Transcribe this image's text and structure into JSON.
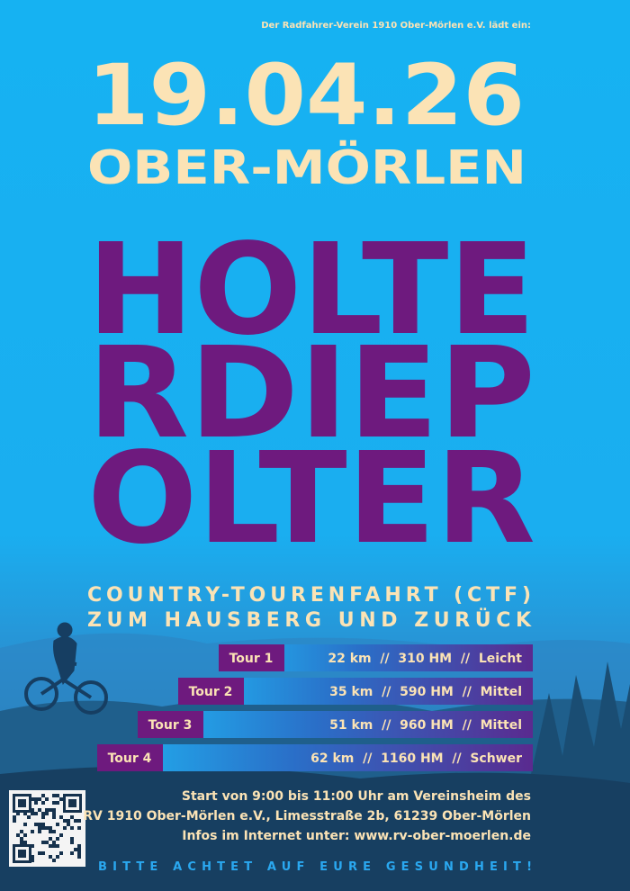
{
  "header": {
    "invite": "Der Radfahrer-Verein 1910 Ober-Mörlen e.V. lädt ein:",
    "date": "19.04.26",
    "place": "OBER-MÖRLEN"
  },
  "title": {
    "lines": [
      "HOLTE",
      "RDIEP",
      "OLTER"
    ]
  },
  "subtitle": {
    "lines": [
      "COUNTRY-TOURENFAHRT (CTF)",
      "ZUM HAUSBERG UND ZURÜCK"
    ]
  },
  "tours": [
    {
      "name": "Tour 1",
      "details": "22 km  //  310 HM  //  Leicht"
    },
    {
      "name": "Tour 2",
      "details": "35 km  //  590 HM  //  Mittel"
    },
    {
      "name": "Tour 3",
      "details": "51 km  //  960 HM  //  Mittel"
    },
    {
      "name": "Tour 4",
      "details": "62 km  //  1160 HM  //  Schwer"
    }
  ],
  "info": {
    "lines": [
      "Start von 9:00 bis 11:00 Uhr am Vereinsheim des",
      "RV 1910 Ober-Mörlen e.V., Limesstraße 2b, 61239 Ober-Mörlen",
      "Infos im Internet unter: www.rv-ober-moerlen.de"
    ]
  },
  "footer": {
    "text": "BITTE ACHTET AUF EURE GESUNDHEIT!"
  }
}
